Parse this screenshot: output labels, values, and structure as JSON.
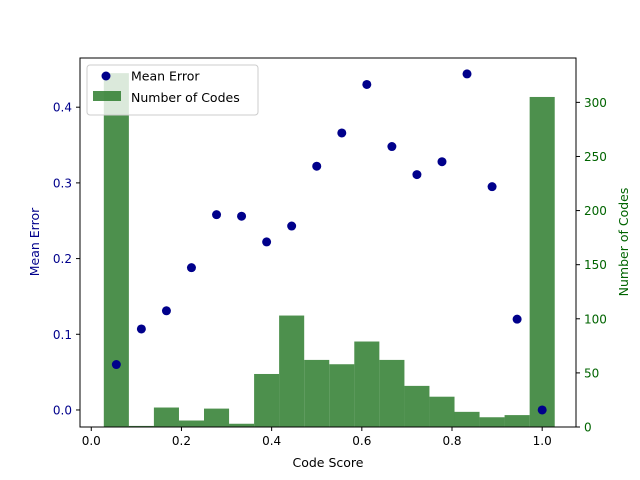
{
  "chart_data": {
    "type": "bar+scatter",
    "title": "",
    "xlabel": "Code Score",
    "ylabel_left": "Mean Error",
    "ylabel_right": "Number of Codes",
    "xlim": [
      -0.025,
      1.075
    ],
    "ylim_left": [
      -0.0225,
      0.465
    ],
    "ylim_right": [
      0,
      341
    ],
    "xticks": [
      "0.0",
      "0.2",
      "0.4",
      "0.6",
      "0.8",
      "1.0"
    ],
    "xtick_values": [
      0.0,
      0.2,
      0.4,
      0.6,
      0.8,
      1.0
    ],
    "yticks_left": [
      "0.0",
      "0.1",
      "0.2",
      "0.3",
      "0.4"
    ],
    "ytick_left_values": [
      0.0,
      0.1,
      0.2,
      0.3,
      0.4
    ],
    "yticks_right": [
      "0",
      "50",
      "100",
      "150",
      "200",
      "250",
      "300"
    ],
    "ytick_right_values": [
      0,
      50,
      100,
      150,
      200,
      250,
      300
    ],
    "colors": {
      "scatter": "#00008b",
      "bars": "#2e7d2e",
      "left_axis": "#00008b",
      "right_axis": "#006400"
    },
    "legend": {
      "placement": "top-left",
      "entries": [
        "Mean Error",
        "Number of Codes"
      ]
    },
    "bar_series": {
      "name": "Number of Codes",
      "bin_width": 0.0556,
      "x": [
        0.0556,
        0.1111,
        0.1667,
        0.2222,
        0.2778,
        0.3333,
        0.3889,
        0.4444,
        0.5,
        0.5556,
        0.6111,
        0.6667,
        0.7222,
        0.7778,
        0.8333,
        0.8889,
        0.9444,
        1.0
      ],
      "values": [
        327,
        1,
        18,
        6,
        17,
        3,
        49,
        103,
        62,
        58,
        79,
        62,
        38,
        28,
        14,
        9,
        11,
        305
      ]
    },
    "scatter_series": {
      "name": "Mean Error",
      "x": [
        0.0556,
        0.1111,
        0.1667,
        0.2222,
        0.2778,
        0.3333,
        0.3889,
        0.4444,
        0.5,
        0.5556,
        0.6111,
        0.6667,
        0.7222,
        0.7778,
        0.8333,
        0.8889,
        0.9444,
        1.0
      ],
      "values": [
        0.06,
        0.107,
        0.131,
        0.188,
        0.258,
        0.256,
        0.222,
        0.243,
        0.322,
        0.366,
        0.43,
        0.348,
        0.311,
        0.328,
        0.444,
        0.295,
        0.12,
        0.0
      ]
    }
  }
}
